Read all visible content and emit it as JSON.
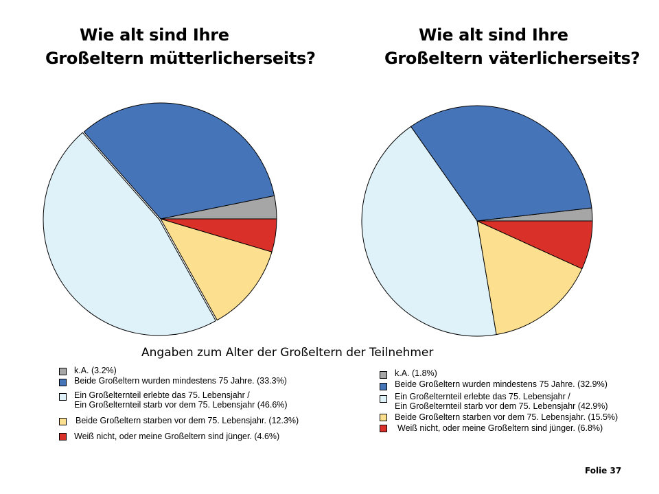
{
  "chart_data": [
    {
      "type": "pie",
      "title_line1": "Wie alt sind Ihre",
      "title_line2": "Großeltern mütterlicherseits?",
      "slices": [
        {
          "label": "k.A.",
          "value": 3.2,
          "color": "#a6a6a6",
          "legend_text": "k.A.  (3.2%)"
        },
        {
          "label": "Beide Großeltern wurden mindestens 75 Jahre.",
          "value": 33.3,
          "color": "#4674b8",
          "legend_text": "Beide Großeltern wurden mindestens 75 Jahre. (33.3%)"
        },
        {
          "label": "Ein Großelternteil erlebte das 75. Lebensjahr / Ein Großelternteil starb vor dem 75. Lebensjahr",
          "value": 46.6,
          "color": "#dff2f9",
          "legend_line1": "Ein Großelternteil erlebte das 75. Lebensjahr /",
          "legend_line2": "Ein Großelternteil starb vor dem 75. Lebensjahr (46.6%)"
        },
        {
          "label": "Beide Großeltern starben vor dem 75. Lebensjahr.",
          "value": 12.3,
          "color": "#fde08f",
          "legend_text": "Beide Großeltern starben vor dem 75. Lebensjahr. (12.3%)"
        },
        {
          "label": "Weiß nicht, oder meine Großeltern sind jünger.",
          "value": 4.6,
          "color": "#d9312a",
          "legend_text": "Weiß nicht, oder meine Großeltern sind jünger. (4.6%)"
        }
      ]
    },
    {
      "type": "pie",
      "title_line1": "Wie alt sind Ihre",
      "title_line2": "Großeltern väterlicherseits?",
      "slices": [
        {
          "label": "k.A.",
          "value": 1.8,
          "color": "#a6a6a6",
          "legend_text": "k.A.  (1.8%)"
        },
        {
          "label": "Beide Großeltern wurden mindestens 75 Jahre.",
          "value": 32.9,
          "color": "#4674b8",
          "legend_text": "Beide Großeltern wurden mindestens 75 Jahre. (32.9%)"
        },
        {
          "label": "Ein Großelternteil erlebte das 75. Lebensjahr / Ein Großelternteil starb vor dem 75. Lebensjahr",
          "value": 42.9,
          "color": "#dff2f9",
          "legend_line1": "Ein Großelternteil erlebte das 75. Lebensjahr /",
          "legend_line2": "Ein Großelternteil starb vor dem 75. Lebensjahr (42.9%)"
        },
        {
          "label": "Beide Großeltern starben vor dem 75. Lebensjahr.",
          "value": 15.5,
          "color": "#fde08f",
          "legend_text": "Beide Großeltern starben vor dem 75. Lebensjahr. (15.5%)"
        },
        {
          "label": "Weiß nicht, oder meine Großeltern sind jünger.",
          "value": 6.8,
          "color": "#d9312a",
          "legend_text": "Weiß nicht, oder meine Großeltern sind jünger. (6.8%)"
        }
      ]
    }
  ],
  "subtitle": "Angaben zum Alter der Großeltern der Teilnehmer",
  "slide_number": "Folie 37"
}
